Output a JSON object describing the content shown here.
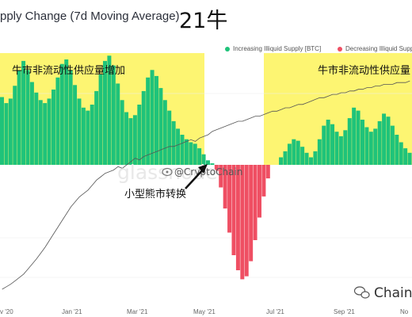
{
  "header": {
    "title": "pply Change (7d Moving Average)",
    "badge": "21牛"
  },
  "legend": {
    "increasing": "Increasing Illiquid Supply [BTC]",
    "decreasing": "Decreasing Illiquid Supply",
    "increasing_color": "#1fc37a",
    "decreasing_color": "#ef4f63"
  },
  "annotations": {
    "bull_left": "牛市非流动性供应量增加",
    "bull_right": "牛市非流动性供应量",
    "bear": "小型熊市转换",
    "watermark_handle": "@CryptoChain",
    "watermark_logo": "glassnode",
    "footer_brand": "Chain"
  },
  "chart_data": {
    "type": "bar",
    "x_ticks": [
      "v '20",
      "Jan '21",
      "Mar '21",
      "May '21",
      "Jul '21",
      "Sep '21",
      "No"
    ],
    "series": [
      {
        "name": "Increasing Illiquid Supply [BTC]",
        "kind": "bar",
        "values": [
          90,
          82,
          88,
          105,
          125,
          138,
          126,
          110,
          96,
          86,
          82,
          88,
          100,
          116,
          134,
          140,
          126,
          106,
          88,
          76,
          72,
          80,
          98,
          120,
          138,
          145,
          132,
          108,
          86,
          70,
          62,
          66,
          80,
          98,
          116,
          126,
          118,
          102,
          86,
          72,
          58,
          48,
          40,
          34,
          30,
          28,
          22,
          14,
          6,
          2,
          -8,
          -30,
          -58,
          -90,
          -120,
          -140,
          -152,
          -148,
          -128,
          -100,
          -70,
          -42,
          -18,
          0,
          0,
          10,
          18,
          28,
          34,
          32,
          24,
          16,
          10,
          18,
          34,
          52,
          60,
          54,
          44,
          38,
          46,
          62,
          76,
          72,
          60,
          50,
          44,
          48,
          58,
          68,
          64,
          52,
          40,
          30,
          22,
          16
        ]
      },
      {
        "name": "price",
        "kind": "line",
        "values": [
          250,
          247,
          244,
          240,
          236,
          232,
          226,
          220,
          214,
          207,
          200,
          192,
          184,
          176,
          168,
          160,
          152,
          146,
          140,
          136,
          132,
          126,
          120,
          116,
          112,
          110,
          108,
          104,
          106,
          102,
          98,
          94,
          96,
          92,
          90,
          88,
          86,
          84,
          82,
          80,
          80,
          78,
          76,
          74,
          72,
          74,
          70,
          68,
          66,
          62,
          60,
          58,
          56,
          54,
          52,
          50,
          50,
          48,
          46,
          44,
          44,
          42,
          40,
          38,
          38,
          36,
          34,
          34,
          32,
          30,
          30,
          28,
          26,
          24,
          22,
          22,
          20,
          18,
          18,
          16,
          16,
          14,
          14,
          12,
          12,
          10,
          10,
          8,
          8,
          6,
          6,
          6,
          4,
          4,
          4,
          2
        ]
      }
    ]
  }
}
